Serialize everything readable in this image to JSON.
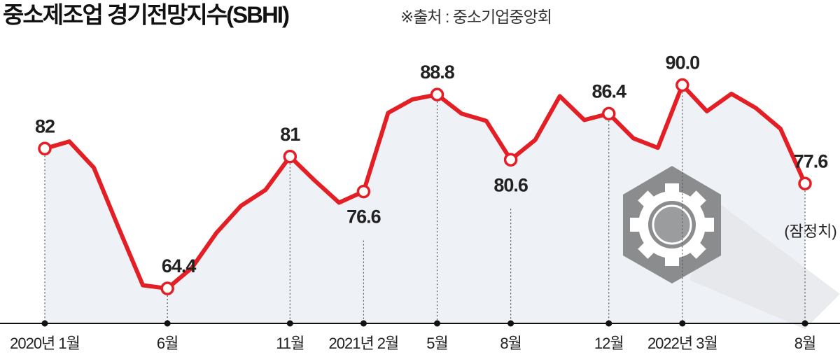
{
  "chart_data": {
    "type": "line",
    "title": "중소제조업 경기전망지수(SBHI)",
    "source": "※출처 : 중소기업중앙회",
    "annotation": "(잠정치)",
    "categories": [
      "2020년 1월",
      null,
      null,
      null,
      null,
      "6월",
      null,
      null,
      null,
      null,
      "11월",
      null,
      null,
      "2021년 2월",
      null,
      null,
      "5월",
      null,
      null,
      "8월",
      null,
      null,
      null,
      "12월",
      null,
      null,
      "2022년 3월",
      null,
      null,
      null,
      null,
      "8월"
    ],
    "series": [
      {
        "name": "SBHI",
        "color": "#e31e24",
        "values": [
          82,
          82.9,
          79.6,
          72.1,
          64.8,
          64.4,
          67.0,
          71.4,
          74.8,
          76.8,
          81,
          78.0,
          75.2,
          76.6,
          86.5,
          88.2,
          88.8,
          86.4,
          85.5,
          80.6,
          83.1,
          88.6,
          85.6,
          86.4,
          83.3,
          82.1,
          90.0,
          86.7,
          88.9,
          87.1,
          84.5,
          77.6
        ],
        "value_labels": [
          "82",
          null,
          null,
          null,
          null,
          "64.4",
          null,
          null,
          null,
          null,
          "81",
          null,
          null,
          "76.6",
          null,
          null,
          "88.8",
          null,
          null,
          "80.6",
          null,
          null,
          null,
          "86.4",
          null,
          null,
          "90.0",
          null,
          null,
          null,
          null,
          "77.6"
        ]
      }
    ],
    "ylim": [
      60,
      100
    ]
  }
}
